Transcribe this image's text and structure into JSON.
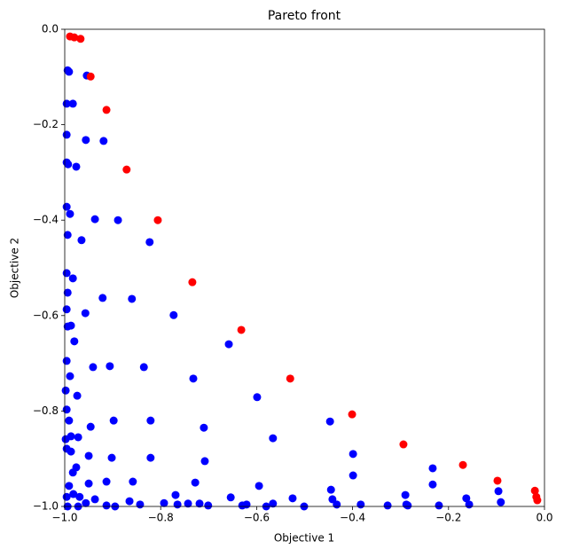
{
  "chart_data": {
    "type": "scatter",
    "title": "Pareto front",
    "x_label": "Objective 1",
    "y_label": "Objective 2",
    "xlim": [
      -1.0,
      0.0
    ],
    "ylim": [
      -1.0,
      0.0
    ],
    "xticks": [
      {
        "value": -1.0,
        "label": "−1.0"
      },
      {
        "value": -0.8,
        "label": "−0.8"
      },
      {
        "value": -0.6,
        "label": "−0.6"
      },
      {
        "value": -0.4,
        "label": "−0.4"
      },
      {
        "value": -0.2,
        "label": "−0.2"
      },
      {
        "value": 0.0,
        "label": "0.0"
      }
    ],
    "yticks": [
      {
        "value": -1.0,
        "label": "−1.0"
      },
      {
        "value": -0.8,
        "label": "−0.8"
      },
      {
        "value": -0.6,
        "label": "−0.6"
      },
      {
        "value": -0.4,
        "label": "−0.4"
      },
      {
        "value": -0.2,
        "label": "−0.2"
      },
      {
        "value": 0.0,
        "label": "0.0"
      }
    ],
    "grid": false,
    "series": [
      {
        "color": "#0000ff",
        "x": [
          -0.994,
          -0.991,
          -0.983,
          -0.954,
          -0.996,
          -0.996,
          -0.956,
          -0.919,
          -0.996,
          -0.993,
          -0.976,
          -0.989,
          -0.937,
          -0.889,
          -0.823,
          -0.965,
          -0.996,
          -0.994,
          -0.983,
          -0.996,
          -0.994,
          -0.996,
          -0.994,
          -0.987,
          -0.957,
          -0.921,
          -0.86,
          -0.773,
          -0.658,
          -0.98,
          -0.941,
          -0.906,
          -0.835,
          -0.732,
          -0.599,
          -0.996,
          -0.989,
          -0.974,
          -0.998,
          -0.946,
          -0.898,
          -0.821,
          -0.71,
          -0.566,
          -0.447,
          -0.399,
          -0.996,
          -0.991,
          -0.987,
          -0.998,
          -0.972,
          -0.95,
          -0.902,
          -0.821,
          -0.708,
          -0.595,
          -0.445,
          -0.399,
          -0.233,
          -0.233,
          -0.996,
          -0.987,
          -0.976,
          -0.983,
          -0.95,
          -0.913,
          -0.858,
          -0.769,
          -0.728,
          -0.654,
          -0.525,
          -0.442,
          -0.29,
          -0.163,
          -0.096,
          -0.091,
          -0.991,
          -0.982,
          -0.969,
          -0.937,
          -0.865,
          -0.793,
          -0.701,
          -0.63,
          -0.58,
          -0.501,
          -0.433,
          -0.288,
          -0.22,
          -0.157,
          -0.956,
          -0.913,
          -0.843,
          -0.765,
          -0.719,
          -0.566,
          -0.383,
          -0.285,
          -0.994,
          -0.972,
          -0.895,
          -0.743,
          -0.621,
          -0.327,
          -0.996
        ],
        "values": [
          -0.086,
          -0.089,
          -0.156,
          -0.097,
          -0.156,
          -0.221,
          -0.232,
          -0.234,
          -0.279,
          -0.283,
          -0.288,
          -0.387,
          -0.398,
          -0.4,
          -0.446,
          -0.442,
          -0.372,
          -0.431,
          -0.522,
          -0.511,
          -0.552,
          -0.587,
          -0.623,
          -0.621,
          -0.595,
          -0.563,
          -0.565,
          -0.599,
          -0.66,
          -0.654,
          -0.708,
          -0.706,
          -0.708,
          -0.732,
          -0.771,
          -0.695,
          -0.727,
          -0.768,
          -0.757,
          -0.833,
          -0.82,
          -0.82,
          -0.835,
          -0.857,
          -0.822,
          -0.89,
          -0.797,
          -0.82,
          -0.853,
          -0.859,
          -0.855,
          -0.894,
          -0.898,
          -0.898,
          -0.905,
          -0.957,
          -0.965,
          -0.935,
          -0.92,
          -0.954,
          -0.879,
          -0.885,
          -0.918,
          -0.929,
          -0.952,
          -0.948,
          -0.948,
          -0.976,
          -0.95,
          -0.981,
          -0.983,
          -0.985,
          -0.976,
          -0.983,
          -0.968,
          -0.991,
          -0.957,
          -0.974,
          -0.98,
          -0.985,
          -0.989,
          -0.993,
          -0.998,
          -0.998,
          -1.0,
          -1.0,
          -0.996,
          -0.996,
          -0.998,
          -0.996,
          -0.993,
          -0.998,
          -0.996,
          -0.996,
          -0.994,
          -0.994,
          -0.996,
          -0.998,
          -1.0,
          -1.0,
          -1.0,
          -0.994,
          -0.996,
          -0.998,
          -0.98
        ]
      },
      {
        "color": "#ff0000",
        "x": [
          -0.989,
          -0.98,
          -0.967,
          -0.946,
          -0.913,
          -0.871,
          -0.806,
          -0.734,
          -0.632,
          -0.53,
          -0.401,
          -0.294,
          -0.17,
          -0.098,
          -0.02,
          -0.017,
          -0.015
        ],
        "values": [
          -0.015,
          -0.017,
          -0.02,
          -0.099,
          -0.169,
          -0.294,
          -0.4,
          -0.53,
          -0.63,
          -0.732,
          -0.807,
          -0.87,
          -0.913,
          -0.946,
          -0.967,
          -0.98,
          -0.987
        ]
      }
    ]
  }
}
